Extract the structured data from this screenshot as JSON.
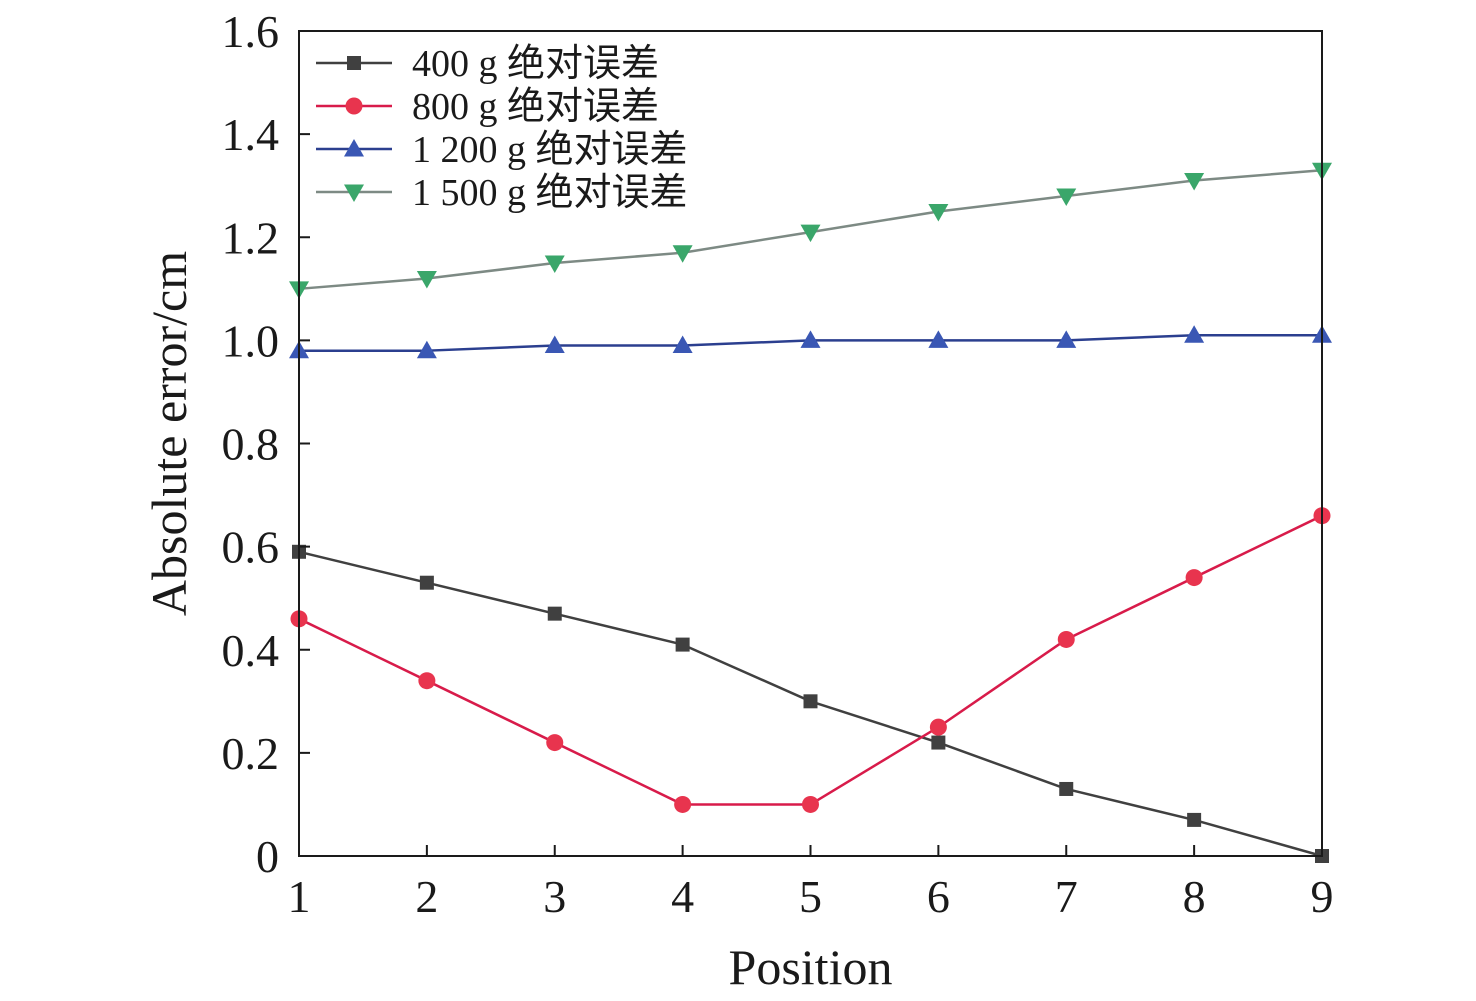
{
  "chart_data": {
    "type": "line",
    "title": "",
    "xlabel": "Position",
    "ylabel": "Absolute error/cm",
    "x": [
      1,
      2,
      3,
      4,
      5,
      6,
      7,
      8,
      9
    ],
    "xlim": [
      1,
      9
    ],
    "ylim": [
      0,
      1.6
    ],
    "x_ticks": [
      "1",
      "2",
      "3",
      "4",
      "5",
      "6",
      "7",
      "8",
      "9"
    ],
    "y_ticks": [
      "0",
      "0.2",
      "0.4",
      "0.6",
      "0.8",
      "1.0",
      "1.2",
      "1.4",
      "1.6"
    ],
    "grid": false,
    "legend_position": "top-left",
    "series": [
      {
        "name": "400 g 绝对误差",
        "marker": "square",
        "color": "#404040",
        "values": [
          0.59,
          0.53,
          0.47,
          0.41,
          0.3,
          0.22,
          0.13,
          0.07,
          0.0
        ]
      },
      {
        "name": "800 g 绝对误差",
        "marker": "circle",
        "color": "#e8344e",
        "line_color": "#d81b4a",
        "values": [
          0.46,
          0.34,
          0.22,
          0.1,
          0.1,
          0.25,
          0.42,
          0.54,
          0.66
        ]
      },
      {
        "name": "1 200 g 绝对误差",
        "marker": "triangle-up",
        "color": "#3a57b4",
        "line_color": "#2b3f8f",
        "values": [
          0.98,
          0.98,
          0.99,
          0.99,
          1.0,
          1.0,
          1.0,
          1.01,
          1.01
        ]
      },
      {
        "name": "1 500 g 绝对误差",
        "marker": "triangle-down",
        "color": "#3aa66a",
        "line_color": "#7d8a84",
        "values": [
          1.1,
          1.12,
          1.15,
          1.17,
          1.21,
          1.25,
          1.28,
          1.31,
          1.33
        ]
      }
    ]
  }
}
